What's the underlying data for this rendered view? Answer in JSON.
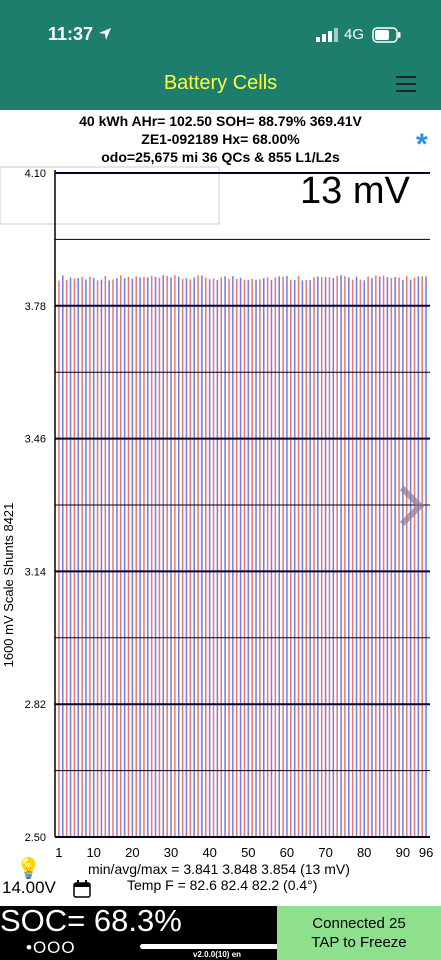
{
  "status_bar": {
    "time": "11:37",
    "network": "4G"
  },
  "header": {
    "title": "Battery Cells"
  },
  "summary": {
    "line1": "40 kWh  AHr= 102.50  SOH= 88.79%   369.41V",
    "line2": "ZE1-092189   Hx= 68.00%",
    "line3": "odo=25,675 mi 36 QCs & 855 L1/L2s"
  },
  "chart_data": {
    "type": "bar",
    "title": "13 mV",
    "ylabel": "1600 mV Scale    Shunts 8421",
    "ylim": [
      2.5,
      4.1
    ],
    "yticks": [
      "4.10",
      "3.78",
      "3.46",
      "3.14",
      "2.82",
      "2.50"
    ],
    "xticks": [
      "1",
      "10",
      "20",
      "30",
      "40",
      "50",
      "60",
      "70",
      "80",
      "90",
      "96"
    ],
    "cell_count": 96,
    "min_v": 3.841,
    "avg_v": 3.848,
    "max_v": 3.854,
    "colors": {
      "odd": "#e87979",
      "even": "#7b7be6"
    }
  },
  "footer": {
    "stats": "min/avg/max = 3.841 3.848 3.854  (13 mV)",
    "temp": "Temp F = 82.6  82.4  82.2  (0.4°)",
    "voltage": "14.00V",
    "soc": "SOC= 68.3%",
    "dots": "•OOO",
    "version": "v2.0.0(10) en",
    "connected": "Connected 25",
    "tap": "TAP to Freeze"
  },
  "icons": [
    "location-arrow-icon",
    "signal-icon",
    "battery-icon",
    "menu-icon",
    "bluetooth-icon",
    "bulb-icon",
    "calendar-icon",
    "chevron-right-icon"
  ]
}
